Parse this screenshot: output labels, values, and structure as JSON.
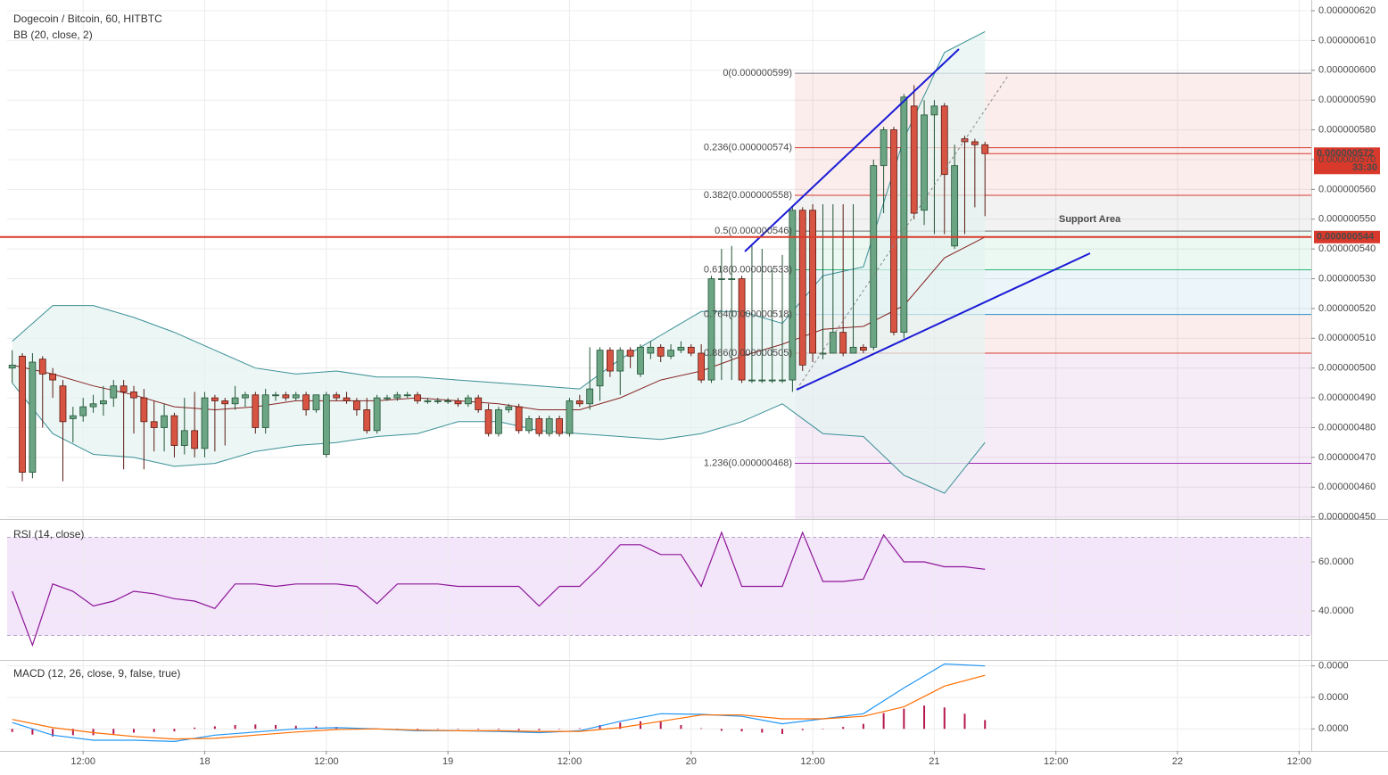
{
  "chart_data": [
    {
      "type": "candlestick",
      "title": "Dogecoin / Bitcoin, 60, HITBTC",
      "subtitle": "BB (20, close, 2)",
      "xlim": [
        4.5,
        133.2
      ],
      "xticks": [
        {
          "value": 12,
          "label": "12:00"
        },
        {
          "value": 24,
          "label": "18"
        },
        {
          "value": 36,
          "label": "12:00"
        },
        {
          "value": 48,
          "label": "19"
        },
        {
          "value": 60,
          "label": "12:00"
        },
        {
          "value": 72,
          "label": "20"
        },
        {
          "value": 84,
          "label": "12:00"
        },
        {
          "value": 96,
          "label": "21"
        },
        {
          "value": 108,
          "label": "12:00"
        },
        {
          "value": 120,
          "label": "22"
        },
        {
          "value": 132,
          "label": "12:00"
        }
      ],
      "ylim": [
        4.493e-07,
        6.236e-07
      ],
      "yticks": [
        {
          "value": 6.2e-07,
          "label": "0.000000620"
        },
        {
          "value": 6.1e-07,
          "label": "0.000000610"
        },
        {
          "value": 6e-07,
          "label": "0.000000600"
        },
        {
          "value": 5.9e-07,
          "label": "0.000000590"
        },
        {
          "value": 5.8e-07,
          "label": "0.000000580"
        },
        {
          "value": 5.7e-07,
          "label": "0.000000570"
        },
        {
          "value": 5.6e-07,
          "label": "0.000000560"
        },
        {
          "value": 5.5e-07,
          "label": "0.000000550"
        },
        {
          "value": 5.4e-07,
          "label": "0.000000540"
        },
        {
          "value": 5.3e-07,
          "label": "0.000000530"
        },
        {
          "value": 5.2e-07,
          "label": "0.000000520"
        },
        {
          "value": 5.1e-07,
          "label": "0.000000510"
        },
        {
          "value": 5e-07,
          "label": "0.000000500"
        },
        {
          "value": 4.9e-07,
          "label": "0.000000490"
        },
        {
          "value": 4.8e-07,
          "label": "0.000000480"
        },
        {
          "value": 4.7e-07,
          "label": "0.000000470"
        },
        {
          "value": 4.6e-07,
          "label": "0.000000460"
        },
        {
          "value": 4.5e-07,
          "label": "0.000000450"
        }
      ],
      "grid": true,
      "up_color": "#6ba583",
      "down_color": "#d75442",
      "up_border": "#225437",
      "down_border": "#5b1a13",
      "x": [
        5,
        6,
        7,
        8,
        9,
        10,
        11,
        12,
        13,
        14,
        15,
        16,
        17,
        18,
        19,
        20,
        21,
        22,
        23,
        24,
        25,
        26,
        27,
        28,
        29,
        30,
        31,
        32,
        33,
        34,
        35,
        36,
        37,
        38,
        39,
        40,
        41,
        42,
        43,
        44,
        45,
        46,
        47,
        48,
        49,
        50,
        51,
        52,
        53,
        54,
        55,
        56,
        57,
        58,
        59,
        60,
        61,
        62,
        63,
        64,
        65,
        66,
        67,
        68,
        69,
        70,
        71,
        72,
        73,
        74,
        75,
        76,
        77,
        78,
        79,
        80,
        81,
        82,
        83,
        84,
        85,
        86,
        87,
        88,
        89,
        90,
        91,
        92,
        93,
        94,
        95,
        96,
        97,
        98,
        99,
        100,
        101
      ],
      "open": [
        5e-07,
        5.04e-07,
        4.65e-07,
        5.03e-07,
        4.98e-07,
        4.94e-07,
        4.83e-07,
        4.84e-07,
        4.87e-07,
        4.88e-07,
        4.9e-07,
        4.94e-07,
        4.92e-07,
        4.9e-07,
        4.82e-07,
        4.8e-07,
        4.84e-07,
        4.74e-07,
        4.79e-07,
        4.73e-07,
        4.9e-07,
        4.89e-07,
        4.88e-07,
        4.9e-07,
        4.91e-07,
        4.8e-07,
        4.91e-07,
        4.91e-07,
        4.9e-07,
        4.91e-07,
        4.86e-07,
        4.71e-07,
        4.91e-07,
        4.9e-07,
        4.89e-07,
        4.86e-07,
        4.79e-07,
        4.9e-07,
        4.9e-07,
        4.91e-07,
        4.91e-07,
        4.89e-07,
        4.89e-07,
        4.89e-07,
        4.89e-07,
        4.88e-07,
        4.9e-07,
        4.86e-07,
        4.78e-07,
        4.86e-07,
        4.87e-07,
        4.79e-07,
        4.83e-07,
        4.78e-07,
        4.83e-07,
        4.78e-07,
        4.89e-07,
        4.88e-07,
        4.94e-07,
        5.06e-07,
        4.99e-07,
        5.06e-07,
        4.98e-07,
        5.05e-07,
        5.07e-07,
        5.04e-07,
        5.06e-07,
        5.07e-07,
        5.05e-07,
        4.96e-07,
        5.3e-07,
        5.3e-07,
        5.3e-07,
        4.96e-07,
        4.96e-07,
        4.96e-07,
        4.96e-07,
        4.96e-07,
        5.53e-07,
        5.53e-07,
        5.05e-07,
        5.05e-07,
        5.12e-07,
        5.05e-07,
        5.07e-07,
        5.07e-07,
        5.68e-07,
        5.8e-07,
        5.12e-07,
        5.88e-07,
        5.53e-07,
        5.85e-07,
        5.88e-07,
        5.41e-07,
        5.77e-07,
        5.76e-07,
        5.75e-07
      ],
      "high": [
        5.06e-07,
        5.05e-07,
        5.05e-07,
        5.04e-07,
        5e-07,
        4.96e-07,
        4.87e-07,
        4.9e-07,
        4.91e-07,
        4.94e-07,
        4.96e-07,
        4.96e-07,
        4.94e-07,
        4.93e-07,
        4.89e-07,
        4.88e-07,
        4.85e-07,
        4.9e-07,
        4.92e-07,
        4.92e-07,
        4.91e-07,
        4.9e-07,
        4.94e-07,
        4.92e-07,
        4.92e-07,
        4.93e-07,
        4.92e-07,
        4.92e-07,
        4.92e-07,
        4.92e-07,
        4.91e-07,
        4.92e-07,
        4.92e-07,
        4.92e-07,
        4.9e-07,
        4.9e-07,
        4.91e-07,
        4.91e-07,
        4.92e-07,
        4.92e-07,
        4.92e-07,
        4.9e-07,
        4.9e-07,
        4.9e-07,
        4.9e-07,
        4.91e-07,
        4.91e-07,
        4.88e-07,
        4.87e-07,
        4.88e-07,
        4.88e-07,
        4.84e-07,
        4.84e-07,
        4.84e-07,
        4.84e-07,
        4.9e-07,
        4.91e-07,
        5.07e-07,
        5.07e-07,
        5.07e-07,
        5.07e-07,
        5.07e-07,
        5.08e-07,
        5.09e-07,
        5.08e-07,
        5.08e-07,
        5.09e-07,
        5.08e-07,
        5.08e-07,
        5.31e-07,
        5.4e-07,
        5.41e-07,
        5.31e-07,
        5.41e-07,
        5.4e-07,
        5.33e-07,
        5.38e-07,
        5.54e-07,
        5.54e-07,
        5.55e-07,
        5.55e-07,
        5.55e-07,
        5.55e-07,
        5.55e-07,
        5.08e-07,
        5.7e-07,
        5.81e-07,
        5.81e-07,
        5.92e-07,
        5.95e-07,
        5.9e-07,
        5.9e-07,
        5.89e-07,
        5.75e-07,
        5.78e-07,
        5.77e-07,
        5.76e-07
      ],
      "low": [
        4.95e-07,
        4.62e-07,
        4.63e-07,
        4.8e-07,
        4.9e-07,
        4.62e-07,
        4.75e-07,
        4.82e-07,
        4.85e-07,
        4.84e-07,
        4.87e-07,
        4.66e-07,
        4.78e-07,
        4.66e-07,
        4.72e-07,
        4.72e-07,
        4.7e-07,
        4.71e-07,
        4.7e-07,
        4.7e-07,
        4.72e-07,
        4.74e-07,
        4.86e-07,
        4.87e-07,
        4.78e-07,
        4.78e-07,
        4.89e-07,
        4.89e-07,
        4.89e-07,
        4.84e-07,
        4.85e-07,
        4.7e-07,
        4.89e-07,
        4.88e-07,
        4.84e-07,
        4.78e-07,
        4.78e-07,
        4.89e-07,
        4.89e-07,
        4.9e-07,
        4.88e-07,
        4.88e-07,
        4.88e-07,
        4.88e-07,
        4.87e-07,
        4.87e-07,
        4.85e-07,
        4.77e-07,
        4.77e-07,
        4.85e-07,
        4.78e-07,
        4.78e-07,
        4.77e-07,
        4.77e-07,
        4.77e-07,
        4.77e-07,
        4.87e-07,
        4.86e-07,
        4.89e-07,
        4.97e-07,
        4.91e-07,
        5e-07,
        4.97e-07,
        5.03e-07,
        5.02e-07,
        5.03e-07,
        5.05e-07,
        5.04e-07,
        4.95e-07,
        4.95e-07,
        4.96e-07,
        4.96e-07,
        4.95e-07,
        4.95e-07,
        4.95e-07,
        4.95e-07,
        4.95e-07,
        4.92e-07,
        4.99e-07,
        5.02e-07,
        5.03e-07,
        5.05e-07,
        5.04e-07,
        5.05e-07,
        5.05e-07,
        5.06e-07,
        5.52e-07,
        5.11e-07,
        5.1e-07,
        5.5e-07,
        5.48e-07,
        5.45e-07,
        5.45e-07,
        5.4e-07,
        5.45e-07,
        5.54e-07,
        5.51e-07
      ],
      "close": [
        5.01e-07,
        4.65e-07,
        5.02e-07,
        4.98e-07,
        4.96e-07,
        4.82e-07,
        4.84e-07,
        4.87e-07,
        4.88e-07,
        4.89e-07,
        4.94e-07,
        4.92e-07,
        4.9e-07,
        4.82e-07,
        4.8e-07,
        4.84e-07,
        4.74e-07,
        4.79e-07,
        4.73e-07,
        4.9e-07,
        4.89e-07,
        4.88e-07,
        4.9e-07,
        4.91e-07,
        4.8e-07,
        4.91e-07,
        4.91e-07,
        4.9e-07,
        4.91e-07,
        4.86e-07,
        4.91e-07,
        4.91e-07,
        4.9e-07,
        4.89e-07,
        4.86e-07,
        4.79e-07,
        4.9e-07,
        4.9e-07,
        4.91e-07,
        4.91e-07,
        4.89e-07,
        4.89e-07,
        4.89e-07,
        4.89e-07,
        4.88e-07,
        4.9e-07,
        4.86e-07,
        4.78e-07,
        4.86e-07,
        4.87e-07,
        4.79e-07,
        4.83e-07,
        4.78e-07,
        4.83e-07,
        4.78e-07,
        4.89e-07,
        4.88e-07,
        4.93e-07,
        5.06e-07,
        4.99e-07,
        5.06e-07,
        5.04e-07,
        5.07e-07,
        5.07e-07,
        5.04e-07,
        5.06e-07,
        5.07e-07,
        5.05e-07,
        4.96e-07,
        5.3e-07,
        5.3e-07,
        5.3e-07,
        4.96e-07,
        4.96e-07,
        4.96e-07,
        4.96e-07,
        4.96e-07,
        5.53e-07,
        5.01e-07,
        5.05e-07,
        5.05e-07,
        5.12e-07,
        5.05e-07,
        5.07e-07,
        5.06e-07,
        5.68e-07,
        5.8e-07,
        5.12e-07,
        5.91e-07,
        5.52e-07,
        5.85e-07,
        5.88e-07,
        5.65e-07,
        5.68e-07,
        5.76e-07,
        5.75e-07,
        5.72e-07
      ],
      "bb": {
        "x": [
          5,
          9,
          13,
          17,
          21,
          25,
          29,
          33,
          37,
          41,
          45,
          49,
          53,
          57,
          61,
          65,
          69,
          73,
          77,
          81,
          85,
          89,
          93,
          97,
          101
        ],
        "upper": [
          5.09e-07,
          5.21e-07,
          5.21e-07,
          5.17e-07,
          5.12e-07,
          5.06e-07,
          5e-07,
          4.98e-07,
          4.99e-07,
          4.97e-07,
          4.97e-07,
          4.96e-07,
          4.95e-07,
          4.94e-07,
          4.93e-07,
          5.03e-07,
          5.11e-07,
          5.19e-07,
          5.19e-07,
          5.15e-07,
          5.31e-07,
          5.34e-07,
          5.77e-07,
          6.06e-07,
          6.13e-07
        ],
        "basis": [
          5.01e-07,
          4.98e-07,
          4.94e-07,
          4.91e-07,
          4.87e-07,
          4.86e-07,
          4.87e-07,
          4.89e-07,
          4.89e-07,
          4.89e-07,
          4.9e-07,
          4.89e-07,
          4.88e-07,
          4.86e-07,
          4.86e-07,
          4.9e-07,
          4.96e-07,
          4.99e-07,
          5.04e-07,
          5.08e-07,
          5.13e-07,
          5.14e-07,
          5.21e-07,
          5.37e-07,
          5.44e-07
        ],
        "lower": [
          4.95e-07,
          4.78e-07,
          4.71e-07,
          4.7e-07,
          4.67e-07,
          4.68e-07,
          4.72e-07,
          4.74e-07,
          4.75e-07,
          4.77e-07,
          4.78e-07,
          4.82e-07,
          4.82e-07,
          4.79e-07,
          4.78e-07,
          4.77e-07,
          4.76e-07,
          4.78e-07,
          4.82e-07,
          4.88e-07,
          4.78e-07,
          4.77e-07,
          4.64e-07,
          4.58e-07,
          4.75e-07
        ],
        "band_color": "#3a8f96",
        "basis_color": "#872323",
        "fill": "#e4f3f1"
      },
      "fib": [
        {
          "label": "0(0.000000599)",
          "value": 5.99e-07,
          "color": "#787b86"
        },
        {
          "label": "0.236(0.000000574)",
          "value": 5.74e-07,
          "color": "#d43b2f"
        },
        {
          "label": "0.382(0.000000558)",
          "value": 5.58e-07,
          "color": "#d43b2f"
        },
        {
          "label": "0.5(0.000000546)",
          "value": 5.46e-07,
          "color": "#6e6e6e"
        },
        {
          "label": "0.618(0.000000533)",
          "value": 5.33e-07,
          "color": "#2bb673"
        },
        {
          "label": "0.764(0.000000518)",
          "value": 5.18e-07,
          "color": "#2a8fc7"
        },
        {
          "label": "0.886(0.000000505)",
          "value": 5.05e-07,
          "color": "#d43b2f"
        },
        {
          "label": "1.236(0.000000468)",
          "value": 4.68e-07,
          "color": "#9c27b0"
        }
      ],
      "support": {
        "value": 5.44e-07,
        "label": "0.000000544",
        "text": "Support Area",
        "color": "#d9392b"
      },
      "last_price": {
        "value": 5.72e-07,
        "label": "0.000000572",
        "countdown": "33:30",
        "color": "#d9392b"
      }
    },
    {
      "type": "line",
      "title": "RSI (14, close)",
      "ylim": [
        20,
        77.1
      ],
      "yticks": [
        {
          "value": 60,
          "label": "60.0000"
        },
        {
          "value": 40,
          "label": "40.0000"
        }
      ],
      "band": [
        30,
        70
      ],
      "band_fill": "#f3e6fa",
      "color": "#8e1599",
      "x": [
        5,
        7,
        9,
        11,
        13,
        15,
        17,
        19,
        21,
        23,
        25,
        27,
        29,
        31,
        33,
        35,
        37,
        39,
        41,
        43,
        45,
        47,
        49,
        51,
        53,
        55,
        57,
        59,
        61,
        63,
        65,
        67,
        69,
        71,
        73,
        75,
        77,
        79,
        81,
        83,
        85,
        87,
        89,
        91,
        93,
        95,
        97,
        99,
        101
      ],
      "values": [
        48,
        26,
        51,
        48,
        42,
        44,
        48,
        47,
        45,
        44,
        41,
        51,
        51,
        50,
        51,
        51,
        51,
        50,
        43,
        51,
        51,
        51,
        50,
        50,
        50,
        50,
        42,
        50,
        50,
        58,
        67,
        67,
        63,
        63,
        50,
        72,
        50,
        50,
        50,
        72,
        52,
        52,
        53,
        71,
        60,
        60,
        58,
        58,
        57
      ]
    },
    {
      "type": "macd",
      "title": "MACD (12, 26, close, 9, false, true)",
      "ylim": [
        -3.5e-09,
        1.08e-08
      ],
      "yticks": [
        {
          "value": 0,
          "label": "0.0000"
        },
        {
          "value": 5e-09,
          "label": "0.0000"
        },
        {
          "value": 1e-08,
          "label": "0.0000"
        }
      ],
      "x": [
        5,
        9,
        13,
        17,
        21,
        25,
        29,
        33,
        37,
        41,
        45,
        49,
        53,
        57,
        61,
        65,
        69,
        73,
        77,
        81,
        85,
        89,
        93,
        97,
        101
      ],
      "series": [
        {
          "color": "#2196f3",
          "values": [
            1e-09,
            -1e-09,
            -1.8e-09,
            -1.8e-09,
            -2e-09,
            -1e-09,
            -5e-10,
            0,
            2e-10,
            0,
            -3e-10,
            -3e-10,
            -4e-10,
            -6e-10,
            -3e-10,
            1.2e-09,
            2.4e-09,
            2.3e-09,
            2e-09,
            8e-10,
            1.6e-09,
            2.4e-09,
            6.5e-09,
            1.03e-08,
            1e-08
          ]
        },
        {
          "color": "#ff6d00",
          "values": [
            1.5e-09,
            2e-10,
            -6e-10,
            -1.2e-09,
            -1.6e-09,
            -1.5e-09,
            -1e-09,
            -5e-10,
            -1e-10,
            0,
            -2e-10,
            -3e-10,
            -3e-10,
            -4e-10,
            -4e-10,
            2e-10,
            1.2e-09,
            2.2e-09,
            2.2e-09,
            1.6e-09,
            1.6e-09,
            2e-09,
            3.5e-09,
            6.8e-09,
            8.5e-09
          ]
        }
      ],
      "histogram": {
        "color": "#b5174f",
        "x": [
          5,
          7,
          9,
          11,
          13,
          15,
          17,
          19,
          21,
          23,
          25,
          27,
          29,
          31,
          33,
          35,
          37,
          39,
          41,
          43,
          45,
          47,
          49,
          51,
          53,
          55,
          57,
          59,
          61,
          63,
          65,
          67,
          69,
          71,
          73,
          75,
          77,
          79,
          81,
          83,
          85,
          87,
          89,
          91,
          93,
          95,
          97,
          99,
          101
        ],
        "values": [
          -5e-10,
          -9e-10,
          -1.2e-09,
          -1e-09,
          -1e-09,
          -8e-10,
          -6e-10,
          -5e-10,
          -4e-10,
          2e-10,
          4e-10,
          6e-10,
          7e-10,
          6e-10,
          5e-10,
          4e-10,
          3e-10,
          1e-10,
          0,
          -1e-10,
          -1e-10,
          0,
          0,
          -1e-10,
          -1e-10,
          -2e-10,
          -2e-10,
          0,
          1e-10,
          6e-10,
          1e-09,
          1.2e-09,
          1.2e-09,
          6e-10,
          1e-10,
          -3e-10,
          -4e-10,
          -6e-10,
          -8e-10,
          -2e-10,
          0,
          3e-10,
          8e-10,
          2.5e-09,
          3.2e-09,
          3.7e-09,
          3.4e-09,
          2.4e-09,
          1.4e-09
        ]
      }
    }
  ]
}
